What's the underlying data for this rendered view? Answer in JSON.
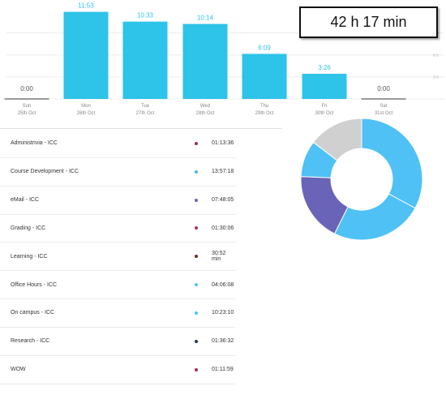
{
  "chart_data": [
    {
      "type": "bar",
      "categories": [
        "Sun",
        "Mon",
        "Tue",
        "Wed",
        "Thu",
        "Fri",
        "Sat"
      ],
      "dates": [
        "25th Oct",
        "26th Oct",
        "27th Oct",
        "28th Oct",
        "29th Oct",
        "30th Oct",
        "31st Oct"
      ],
      "values": [
        0,
        11.883,
        10.55,
        10.233,
        6.15,
        3.433,
        0
      ],
      "value_labels": [
        "0:00",
        "11:53",
        "10:33",
        "10:14",
        "6:09",
        "3:26",
        "0:00"
      ],
      "y_ticks": [
        {
          "label": "3 h",
          "value": 3
        },
        {
          "label": "6 h",
          "value": 6
        },
        {
          "label": "9 h",
          "value": 9
        }
      ],
      "ylim": [
        0,
        13.5
      ],
      "color": "#2ec3e8"
    },
    {
      "type": "pie",
      "style": "donut",
      "slices": [
        {
          "category": "Administrivia - ICC",
          "color": "#9b2c4a",
          "hours": 1.227
        },
        {
          "category": "Course Development - ICC",
          "color": "#4bb8f0",
          "hours": 13.955
        },
        {
          "category": "eMail - ICC",
          "color": "#6a64b8",
          "hours": 7.801
        },
        {
          "category": "Grading - ICC",
          "color": "#a7344f",
          "hours": 1.502
        },
        {
          "category": "Learning - ICC",
          "color": "#6b2a1f",
          "hours": 0.514
        },
        {
          "category": "Office Hours - ICC",
          "color": "#52c3ec",
          "hours": 4.102
        },
        {
          "category": "On campus - ICC",
          "color": "#48c7f2",
          "hours": 10.386
        },
        {
          "category": "Research - ICC",
          "color": "#23385a",
          "hours": 1.609
        },
        {
          "category": "WOW",
          "color": "#ab2a52",
          "hours": 1.2
        }
      ],
      "display_segments": [
        {
          "value": 13.955,
          "color": "#4fc1f5"
        },
        {
          "value": 10.386,
          "color": "#4fc1f5"
        },
        {
          "value": 7.801,
          "color": "#6a64b8"
        },
        {
          "value": 4.102,
          "color": "#4fc1f5"
        },
        {
          "value": 6.2,
          "color": "#d0d0d0"
        }
      ]
    }
  ],
  "total": {
    "value": "42 h 17 min"
  },
  "activities": [
    {
      "name": "Administrivia - ICC",
      "color": "#9b2c4a",
      "duration": "01:13:36"
    },
    {
      "name": "Course Development - ICC",
      "color": "#4bb8f0",
      "duration": "13:57:18"
    },
    {
      "name": "eMail - ICC",
      "color": "#6a64b8",
      "duration": "07:48:05"
    },
    {
      "name": "Grading - ICC",
      "color": "#a7344f",
      "duration": "01:30:06"
    },
    {
      "name": "Learning - ICC",
      "color": "#6b2a1f",
      "duration": "30:52 min"
    },
    {
      "name": "Office Hours - ICC",
      "color": "#52c3ec",
      "duration": "04:06:08"
    },
    {
      "name": "On campus - ICC",
      "color": "#48c7f2",
      "duration": "10:23:10"
    },
    {
      "name": "Research - ICC",
      "color": "#23385a",
      "duration": "01:36:32"
    },
    {
      "name": "WOW",
      "color": "#ab2a52",
      "duration": "01:11:59"
    }
  ]
}
